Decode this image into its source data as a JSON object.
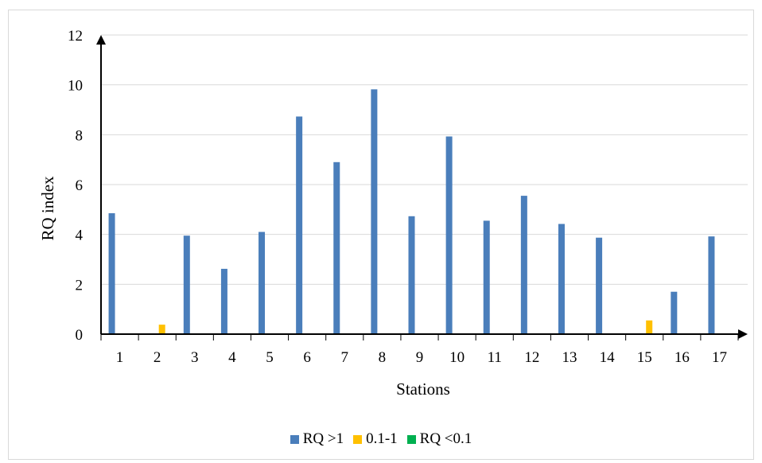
{
  "chart_data": {
    "type": "bar",
    "xlabel": "Stations",
    "ylabel": "RQ index",
    "ylim": [
      0,
      12
    ],
    "yticks": [
      0,
      2,
      4,
      6,
      8,
      10,
      12
    ],
    "grid": true,
    "legend_position": "bottom",
    "categories": [
      "1",
      "2",
      "3",
      "4",
      "5",
      "6",
      "7",
      "8",
      "9",
      "10",
      "11",
      "12",
      "13",
      "14",
      "15",
      "16",
      "17"
    ],
    "series": [
      {
        "name": "RQ >1",
        "color": "#4a7ebb",
        "values": [
          4.85,
          0,
          3.95,
          2.62,
          4.1,
          8.73,
          6.9,
          9.82,
          4.73,
          7.93,
          4.55,
          5.55,
          4.42,
          3.87,
          0,
          1.7,
          3.92
        ]
      },
      {
        "name": "0.1-1",
        "color": "#ffc000",
        "values": [
          0,
          0.38,
          0,
          0,
          0,
          0,
          0,
          0,
          0,
          0,
          0,
          0,
          0,
          0,
          0.55,
          0,
          0
        ]
      },
      {
        "name": "RQ <0.1",
        "color": "#00b050",
        "values": [
          0,
          0,
          0,
          0,
          0,
          0,
          0,
          0,
          0,
          0,
          0,
          0,
          0,
          0,
          0,
          0,
          0
        ]
      }
    ]
  }
}
